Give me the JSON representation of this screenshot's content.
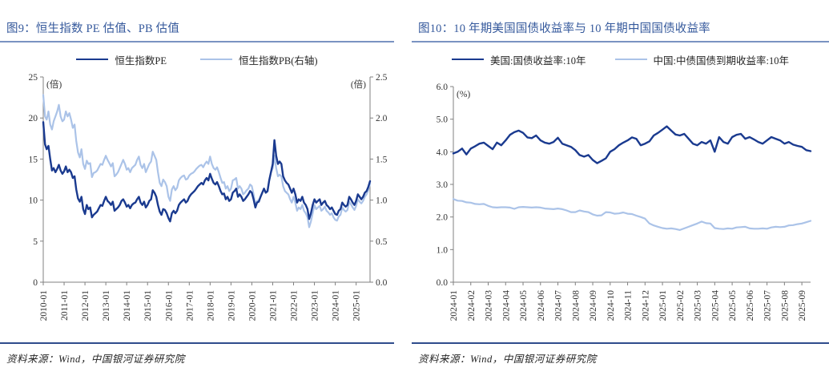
{
  "colors": {
    "title": "#35599c",
    "title_rule": "#7a93c2",
    "separator": "#2f4c8c",
    "dark_series": "#1a3a8f",
    "light_series": "#abc3e8",
    "axis": "#808080",
    "tick_text": "#333333"
  },
  "panels": [
    {
      "title": "图9：恒生指数 PE 估值、PB 估值",
      "source": "资料来源：Wind，中国银河证券研究院"
    },
    {
      "title": "图10：10 年期美国国债收益率与 10 年期中国国债收益率",
      "source": "资料来源：Wind，中国银河证券研究院"
    }
  ],
  "chart_data": [
    {
      "type": "line",
      "title": "恒生指数 PE 估值、PB 估值",
      "grid": false,
      "legend_position": "top",
      "x_ticks": [
        "2010-01",
        "2011-01",
        "2012-01",
        "2013-01",
        "2014-01",
        "2015-01",
        "2016-01",
        "2017-01",
        "2018-01",
        "2019-01",
        "2020-01",
        "2021-01",
        "2022-01",
        "2023-01",
        "2024-01",
        "2025-01"
      ],
      "x_tick_every": 12,
      "y_left": {
        "unit": "(倍)",
        "min": 0,
        "max": 25,
        "ticks": [
          "25",
          "20",
          "15",
          "10",
          "5",
          "0"
        ]
      },
      "y_right": {
        "unit": "(倍)",
        "min": 0,
        "max": 2.5,
        "ticks": [
          "2.5",
          "2.0",
          "1.5",
          "1.0",
          "0.5",
          "0.0"
        ]
      },
      "series": [
        {
          "name": "恒生指数PE",
          "axis": "left",
          "color_key": "dark_series",
          "width": 2.4,
          "values": [
            19.5,
            16.8,
            16.2,
            16.6,
            15.0,
            13.6,
            13.9,
            13.4,
            13.8,
            14.3,
            13.6,
            13.2,
            13.5,
            14.1,
            13.4,
            13.7,
            13.4,
            12.7,
            12.9,
            11.3,
            10.2,
            9.8,
            10.4,
            8.9,
            8.3,
            9.4,
            8.9,
            9.1,
            7.9,
            8.2,
            8.4,
            8.6,
            9.0,
            9.4,
            9.3,
            9.9,
            10.4,
            9.9,
            9.7,
            9.4,
            9.8,
            8.7,
            8.9,
            9.1,
            9.4,
            9.9,
            10.1,
            9.7,
            9.2,
            9.4,
            9.0,
            9.4,
            9.6,
            9.7,
            10.1,
            10.4,
            9.7,
            9.4,
            9.8,
            9.1,
            9.4,
            9.9,
            10.1,
            11.2,
            10.9,
            10.4,
            9.4,
            8.6,
            8.2,
            8.9,
            8.8,
            8.4,
            7.8,
            7.4,
            8.4,
            8.7,
            8.4,
            8.7,
            9.4,
            9.7,
            9.9,
            10.1,
            9.7,
            9.9,
            10.4,
            10.7,
            10.9,
            11.1,
            11.4,
            11.7,
            11.9,
            12.1,
            11.9,
            12.4,
            12.7,
            12.4,
            13.2,
            12.6,
            12.1,
            11.9,
            12.2,
            11.7,
            11.1,
            10.7,
            10.8,
            10.1,
            10.4,
            9.9,
            10.1,
            10.9,
            11.1,
            11.4,
            10.4,
            10.7,
            10.4,
            9.9,
            10.1,
            10.4,
            10.7,
            11.1,
            10.9,
            10.1,
            9.1,
            9.7,
            9.8,
            10.4,
            10.9,
            11.4,
            10.9,
            11.1,
            12.4,
            13.4,
            14.4,
            17.3,
            15.4,
            14.4,
            14.7,
            14.4,
            12.9,
            12.4,
            12.1,
            11.9,
            11.4,
            10.9,
            11.4,
            10.7,
            9.7,
            10.1,
            9.9,
            10.4,
            9.7,
            9.4,
            8.9,
            7.7,
            8.4,
            9.4,
            10.1,
            9.7,
            9.9,
            10.1,
            9.4,
            9.7,
            9.9,
            9.4,
            9.2,
            8.9,
            9.1,
            8.7,
            8.3,
            8.2,
            8.7,
            8.9,
            9.7,
            9.4,
            9.2,
            9.4,
            10.4,
            10.1,
            9.7,
            9.4,
            9.9,
            10.7,
            10.4,
            10.1,
            10.4,
            10.9,
            11.1,
            11.6,
            12.3
          ]
        },
        {
          "name": "恒生指数PB(右轴)",
          "axis": "right",
          "color_key": "light_series",
          "width": 2.2,
          "values": [
            2.28,
            2.02,
            1.98,
            2.08,
            1.92,
            1.86,
            1.96,
            2.02,
            2.08,
            2.16,
            2.02,
            1.96,
            1.98,
            2.08,
            2.02,
            2.06,
            1.98,
            1.88,
            1.92,
            1.72,
            1.58,
            1.52,
            1.62,
            1.44,
            1.38,
            1.48,
            1.44,
            1.45,
            1.28,
            1.33,
            1.34,
            1.36,
            1.4,
            1.44,
            1.43,
            1.49,
            1.54,
            1.49,
            1.45,
            1.41,
            1.45,
            1.29,
            1.31,
            1.34,
            1.39,
            1.44,
            1.49,
            1.44,
            1.37,
            1.39,
            1.34,
            1.39,
            1.41,
            1.43,
            1.49,
            1.53,
            1.43,
            1.39,
            1.44,
            1.34,
            1.39,
            1.44,
            1.47,
            1.59,
            1.54,
            1.49,
            1.34,
            1.21,
            1.17,
            1.25,
            1.22,
            1.17,
            1.04,
            0.99,
            1.13,
            1.17,
            1.12,
            1.15,
            1.24,
            1.27,
            1.29,
            1.3,
            1.25,
            1.26,
            1.3,
            1.32,
            1.33,
            1.35,
            1.38,
            1.4,
            1.42,
            1.43,
            1.4,
            1.44,
            1.47,
            1.44,
            1.53,
            1.44,
            1.39,
            1.37,
            1.4,
            1.34,
            1.27,
            1.21,
            1.22,
            1.14,
            1.17,
            1.11,
            1.14,
            1.24,
            1.25,
            1.27,
            1.14,
            1.17,
            1.14,
            1.07,
            1.09,
            1.12,
            1.14,
            1.19,
            1.17,
            1.07,
            0.94,
            0.99,
            1.0,
            1.04,
            1.09,
            1.14,
            1.09,
            1.1,
            1.24,
            1.34,
            1.39,
            1.54,
            1.39,
            1.29,
            1.31,
            1.29,
            1.17,
            1.11,
            1.09,
            1.07,
            1.01,
            0.97,
            1.04,
            0.97,
            0.87,
            0.91,
            0.89,
            0.94,
            0.87,
            0.84,
            0.79,
            0.67,
            0.74,
            0.84,
            0.94,
            0.89,
            0.91,
            0.93,
            0.87,
            0.89,
            0.92,
            0.87,
            0.85,
            0.82,
            0.84,
            0.79,
            0.76,
            0.75,
            0.8,
            0.82,
            0.91,
            0.88,
            0.86,
            0.88,
            0.98,
            0.95,
            0.91,
            0.88,
            0.93,
            1.01,
            0.98,
            0.96,
            0.99,
            1.04,
            1.07,
            1.12,
            1.2
          ]
        }
      ]
    },
    {
      "type": "line",
      "title": "10 年期美国国债收益率与 10 年期中国国债收益率",
      "grid": false,
      "legend_position": "top",
      "x_ticks": [
        "2024-01",
        "2024-02",
        "2024-03",
        "2024-04",
        "2024-05",
        "2024-06",
        "2024-07",
        "2024-08",
        "2024-09",
        "2024-10",
        "2024-11",
        "2024-12",
        "2025-01",
        "2025-02",
        "2025-03",
        "2025-04",
        "2025-05",
        "2025-06",
        "2025-07",
        "2025-08",
        "2025-09"
      ],
      "x_tick_every": 4,
      "y_left": {
        "unit": "(%)",
        "min": 0,
        "max": 6,
        "ticks": [
          "6.0",
          "5.0",
          "4.0",
          "3.0",
          "2.0",
          "1.0",
          "0.0"
        ]
      },
      "series": [
        {
          "name": "美国:国债收益率:10年",
          "axis": "left",
          "color_key": "dark_series",
          "width": 2.4,
          "values": [
            3.95,
            4.0,
            4.1,
            3.92,
            4.1,
            4.17,
            4.25,
            4.28,
            4.18,
            4.08,
            4.28,
            4.2,
            4.35,
            4.52,
            4.6,
            4.65,
            4.58,
            4.44,
            4.42,
            4.5,
            4.35,
            4.28,
            4.25,
            4.3,
            4.43,
            4.25,
            4.2,
            4.15,
            4.05,
            3.9,
            3.85,
            3.9,
            3.75,
            3.65,
            3.72,
            3.8,
            4.0,
            4.08,
            4.2,
            4.28,
            4.35,
            4.44,
            4.4,
            4.2,
            4.25,
            4.32,
            4.5,
            4.58,
            4.68,
            4.78,
            4.65,
            4.53,
            4.5,
            4.55,
            4.4,
            4.25,
            4.2,
            4.3,
            4.25,
            4.35,
            4.0,
            4.45,
            4.3,
            4.25,
            4.45,
            4.52,
            4.55,
            4.4,
            4.45,
            4.38,
            4.3,
            4.25,
            4.35,
            4.45,
            4.4,
            4.35,
            4.25,
            4.3,
            4.22,
            4.18,
            4.15,
            4.05,
            4.02
          ]
        },
        {
          "name": "中国:中债国债到期收益率:10年",
          "axis": "left",
          "color_key": "light_series",
          "width": 2.2,
          "values": [
            2.55,
            2.5,
            2.49,
            2.45,
            2.44,
            2.4,
            2.39,
            2.4,
            2.34,
            2.3,
            2.29,
            2.3,
            2.3,
            2.29,
            2.25,
            2.3,
            2.31,
            2.3,
            2.29,
            2.3,
            2.29,
            2.26,
            2.25,
            2.24,
            2.26,
            2.24,
            2.2,
            2.15,
            2.15,
            2.2,
            2.17,
            2.15,
            2.08,
            2.04,
            2.05,
            2.15,
            2.14,
            2.1,
            2.11,
            2.14,
            2.1,
            2.09,
            2.04,
            2.0,
            1.95,
            1.8,
            1.74,
            1.7,
            1.66,
            1.64,
            1.65,
            1.63,
            1.6,
            1.65,
            1.7,
            1.75,
            1.8,
            1.86,
            1.81,
            1.8,
            1.66,
            1.64,
            1.63,
            1.65,
            1.64,
            1.68,
            1.69,
            1.7,
            1.65,
            1.64,
            1.64,
            1.65,
            1.64,
            1.68,
            1.7,
            1.69,
            1.7,
            1.74,
            1.75,
            1.78,
            1.8,
            1.84,
            1.88
          ]
        }
      ]
    }
  ]
}
